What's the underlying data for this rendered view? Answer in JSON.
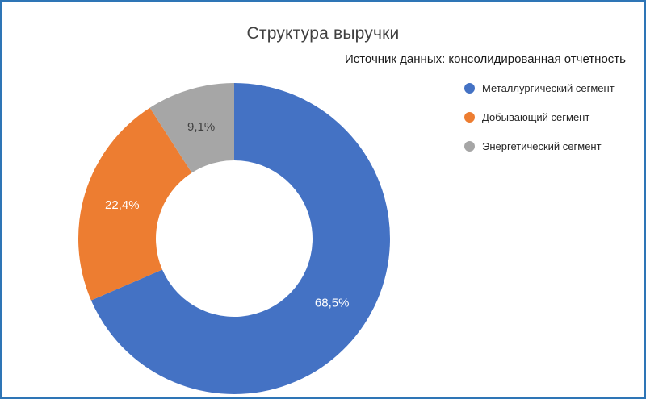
{
  "chart_data": {
    "type": "pie",
    "donut": true,
    "title": "Структура выручки",
    "subtitle": "Источник данных: консолидированная отчетность",
    "legend_position": "right",
    "categories": [
      "Металлургический сегмент",
      "Добывающий сегмент",
      "Энергетический сегмент"
    ],
    "values": [
      68.5,
      22.4,
      9.1
    ],
    "value_labels": [
      "68,5%",
      "22,4%",
      "9,1%"
    ],
    "colors": [
      "#4472c4",
      "#ed7d31",
      "#a6a6a6"
    ],
    "value_label_colors": [
      "#ffffff",
      "#ffffff",
      "#404040"
    ],
    "start_angle_deg": 0,
    "direction": "clockwise"
  },
  "frame": {
    "border_color": "#2e75b6",
    "background": "#ffffff"
  }
}
